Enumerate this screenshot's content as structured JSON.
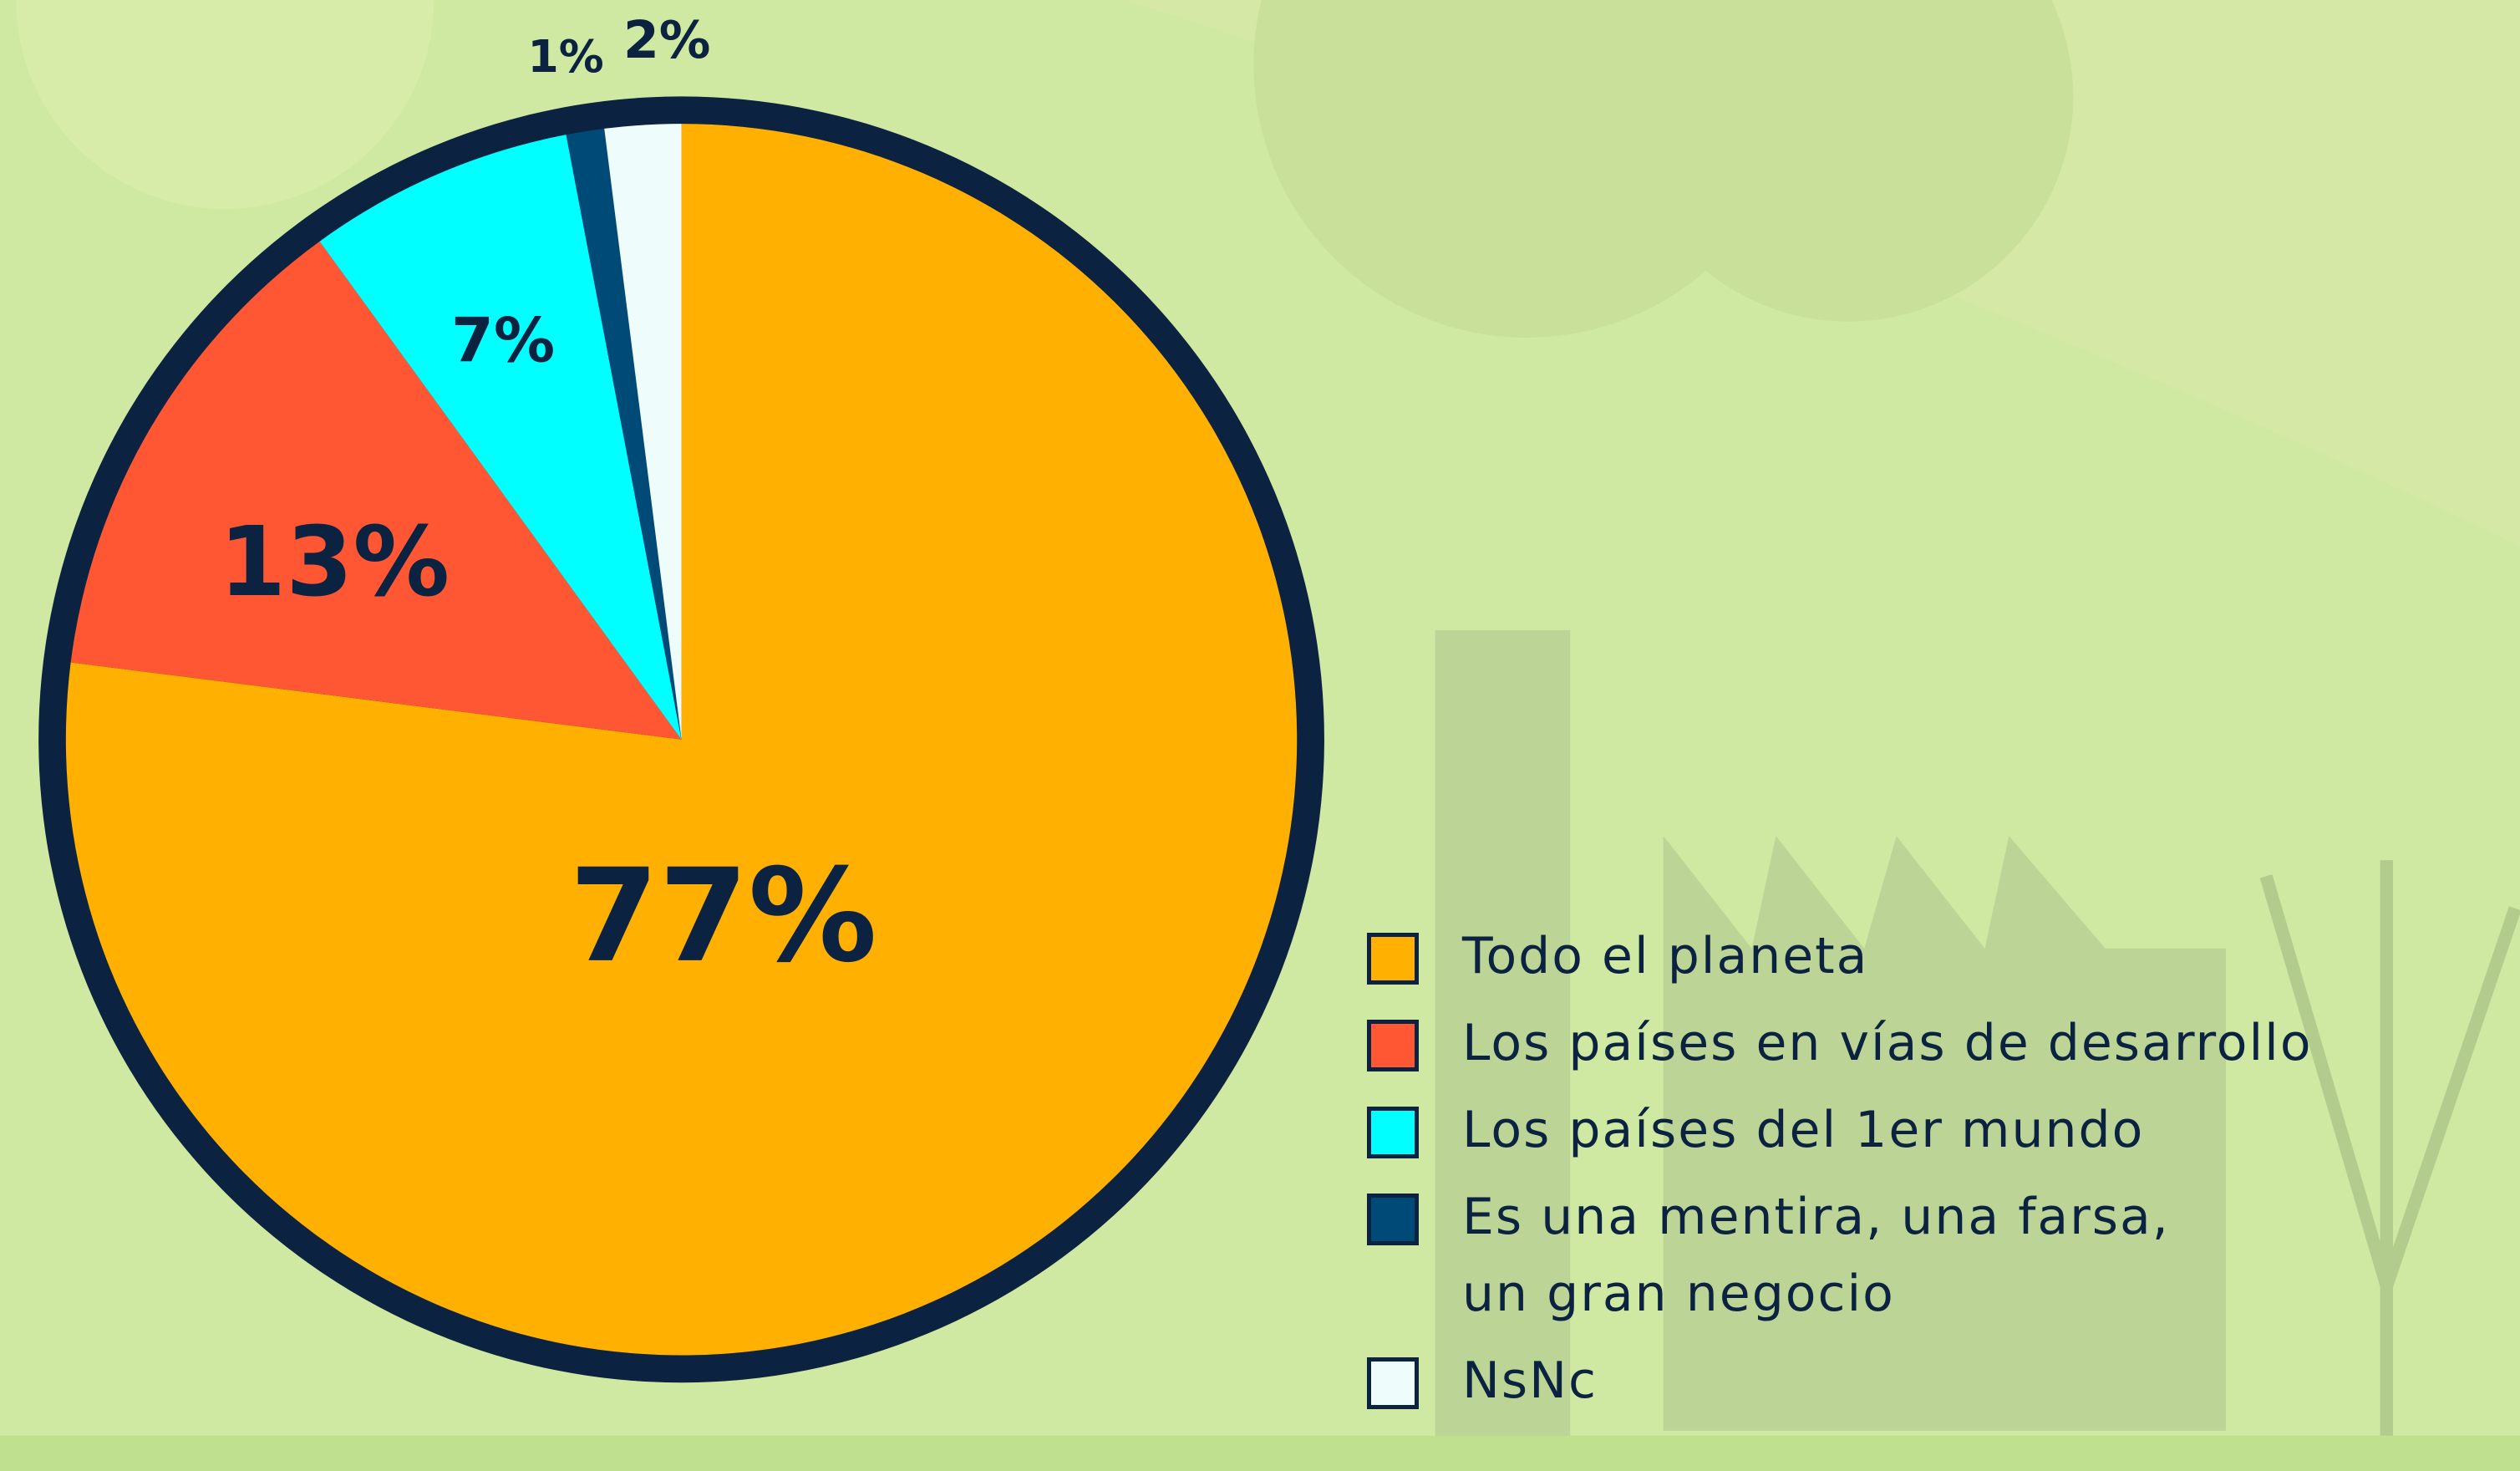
{
  "chart_data": {
    "type": "pie",
    "categories": [
      "Todo el planeta",
      "Los países en vías de desarrollo",
      "Los países del 1er mundo",
      "Es una mentira, una farsa,\nun gran negocio",
      "NsNc"
    ],
    "values": [
      77,
      13,
      7,
      1,
      2
    ],
    "value_labels": [
      "77%",
      "13%",
      "7%",
      "1%",
      "2%"
    ],
    "colors": [
      "#ffb000",
      "#ff5733",
      "#00ffff",
      "#004a78",
      "#eefcfc"
    ],
    "legend": "bottom-right"
  }
}
